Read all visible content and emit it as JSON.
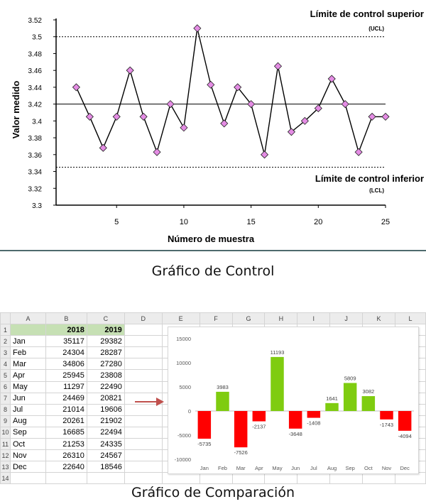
{
  "chart_data": [
    {
      "type": "line",
      "title": "",
      "xlabel": "Número de muestra",
      "ylabel": "Valor medido",
      "xlim": [
        1,
        25
      ],
      "ylim": [
        3.3,
        3.52
      ],
      "xticks": [
        5,
        10,
        15,
        20,
        25
      ],
      "yticks": [
        3.3,
        3.32,
        3.34,
        3.36,
        3.38,
        3.4,
        3.42,
        3.44,
        3.46,
        3.48,
        3.5,
        3.52
      ],
      "grid": false,
      "series": [
        {
          "x": [
            2,
            3,
            4,
            5,
            6,
            7,
            8,
            9,
            10,
            11,
            12,
            13,
            14,
            15,
            16,
            17,
            18,
            19,
            20,
            21,
            22,
            23,
            24,
            25
          ],
          "y": [
            3.44,
            3.405,
            3.368,
            3.405,
            3.46,
            3.405,
            3.363,
            3.42,
            3.392,
            3.51,
            3.443,
            3.397,
            3.44,
            3.42,
            3.36,
            3.465,
            3.387,
            3.4,
            3.415,
            3.45,
            3.42,
            3.363,
            3.405,
            3.405
          ],
          "marker": "diamond",
          "marker_color": "#e48ce4",
          "line_color": "#000000"
        }
      ],
      "center_line": 3.42,
      "ucl": 3.5,
      "lcl": 3.345,
      "annotations": {
        "ucl_label": "Límite de control superior",
        "ucl_short": "(UCL)",
        "lcl_label": "Límite de control inferior",
        "lcl_short": "(LCL)"
      }
    },
    {
      "type": "bar",
      "categories": [
        "Jan",
        "Feb",
        "Mar",
        "Apr",
        "May",
        "Jun",
        "Jul",
        "Aug",
        "Sep",
        "Oct",
        "Nov",
        "Dec"
      ],
      "values": [
        -5735,
        3983,
        -7526,
        -2137,
        11193,
        -3648,
        -1408,
        1641,
        5809,
        3082,
        -1743,
        -4094
      ],
      "ylim": [
        -10000,
        15000
      ],
      "yticks": [
        -10000,
        -5000,
        0,
        5000,
        10000,
        15000
      ],
      "positive_color": "#7fcc10",
      "negative_color": "#ff0000",
      "data_labels": true
    }
  ],
  "captions": {
    "control": "Gráfico de Control",
    "comparison": "Gráfico de Comparación"
  },
  "spreadsheet": {
    "columns": [
      "",
      "A",
      "B",
      "C",
      "D",
      "E",
      "F",
      "G",
      "H",
      "I",
      "J",
      "K",
      "L"
    ],
    "header_years": [
      "2018",
      "2019"
    ],
    "rows": [
      {
        "month": "Jan",
        "v2018": "35117",
        "v2019": "29382"
      },
      {
        "month": "Feb",
        "v2018": "24304",
        "v2019": "28287"
      },
      {
        "month": "Mar",
        "v2018": "34806",
        "v2019": "27280"
      },
      {
        "month": "Apr",
        "v2018": "25945",
        "v2019": "23808"
      },
      {
        "month": "May",
        "v2018": "11297",
        "v2019": "22490"
      },
      {
        "month": "Jun",
        "v2018": "24469",
        "v2019": "20821"
      },
      {
        "month": "Jul",
        "v2018": "21014",
        "v2019": "19606"
      },
      {
        "month": "Aug",
        "v2018": "20261",
        "v2019": "21902"
      },
      {
        "month": "Sep",
        "v2018": "16685",
        "v2019": "22494"
      },
      {
        "month": "Oct",
        "v2018": "21253",
        "v2019": "24335"
      },
      {
        "month": "Nov",
        "v2018": "26310",
        "v2019": "24567"
      },
      {
        "month": "Dec",
        "v2018": "22640",
        "v2019": "18546"
      }
    ],
    "row_numbers": [
      "1",
      "2",
      "3",
      "4",
      "5",
      "6",
      "7",
      "8",
      "9",
      "10",
      "11",
      "12",
      "13",
      "14"
    ]
  },
  "icons": {
    "arrow": "right-arrow-icon"
  },
  "colors": {
    "arrow": "#c0504d",
    "divider": "#4e6a6d",
    "sheet_header_fill": "#c6e0b4"
  }
}
